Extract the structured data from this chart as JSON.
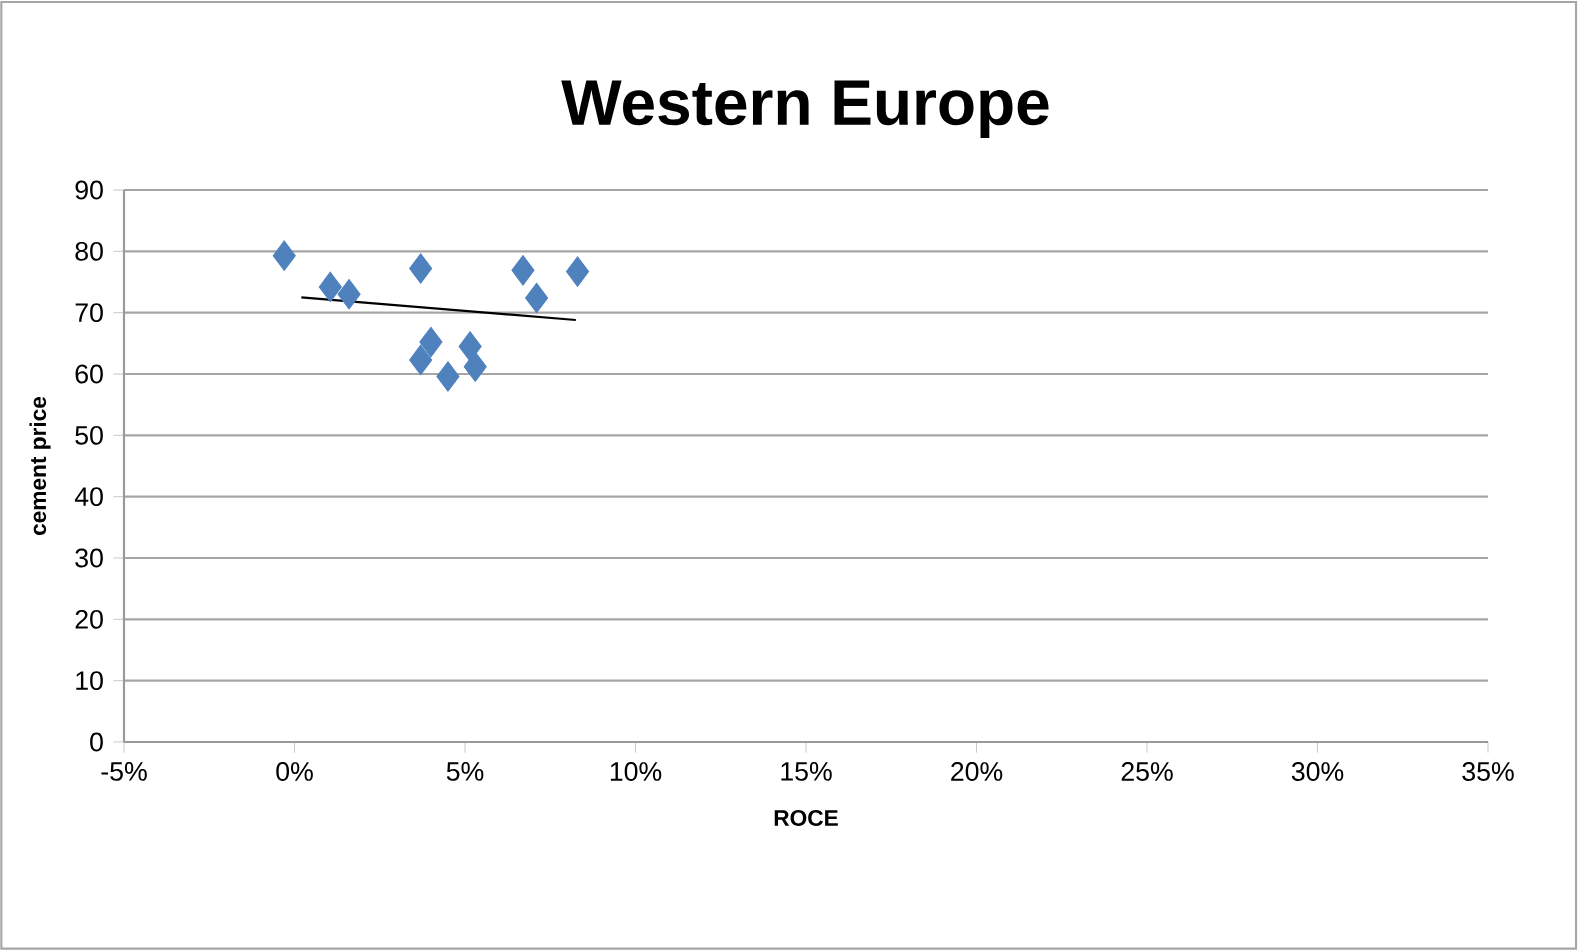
{
  "chart_data": {
    "type": "scatter",
    "title": "Western Europe",
    "xlabel": "ROCE",
    "ylabel": "cement  price",
    "series": [
      {
        "type": "scatter",
        "color": "#4f81bd",
        "marker": "diamond",
        "x": [
          -0.3,
          1.05,
          1.6,
          3.7,
          3.7,
          4.0,
          4.5,
          5.15,
          5.3,
          6.7,
          7.1,
          8.3
        ],
        "values": [
          79.3,
          74.2,
          73.0,
          77.2,
          62.3,
          65.2,
          59.6,
          64.5,
          61.2,
          76.9,
          72.4,
          76.7
        ]
      },
      {
        "type": "line",
        "color": "#000000",
        "x": [
          0.2,
          8.25
        ],
        "values": [
          72.5,
          68.8
        ]
      }
    ],
    "xlim": [
      -5,
      35
    ],
    "ylim": [
      0,
      90
    ],
    "xticks": [
      {
        "value": -5,
        "label": "-5%"
      },
      {
        "value": 0,
        "label": "0%"
      },
      {
        "value": 5,
        "label": "5%"
      },
      {
        "value": 10,
        "label": "10%"
      },
      {
        "value": 15,
        "label": "15%"
      },
      {
        "value": 20,
        "label": "20%"
      },
      {
        "value": 25,
        "label": "25%"
      },
      {
        "value": 30,
        "label": "30%"
      },
      {
        "value": 35,
        "label": "35%"
      }
    ],
    "yticks": [
      0,
      10,
      20,
      30,
      40,
      50,
      60,
      70,
      80,
      90
    ],
    "grid": "y"
  }
}
